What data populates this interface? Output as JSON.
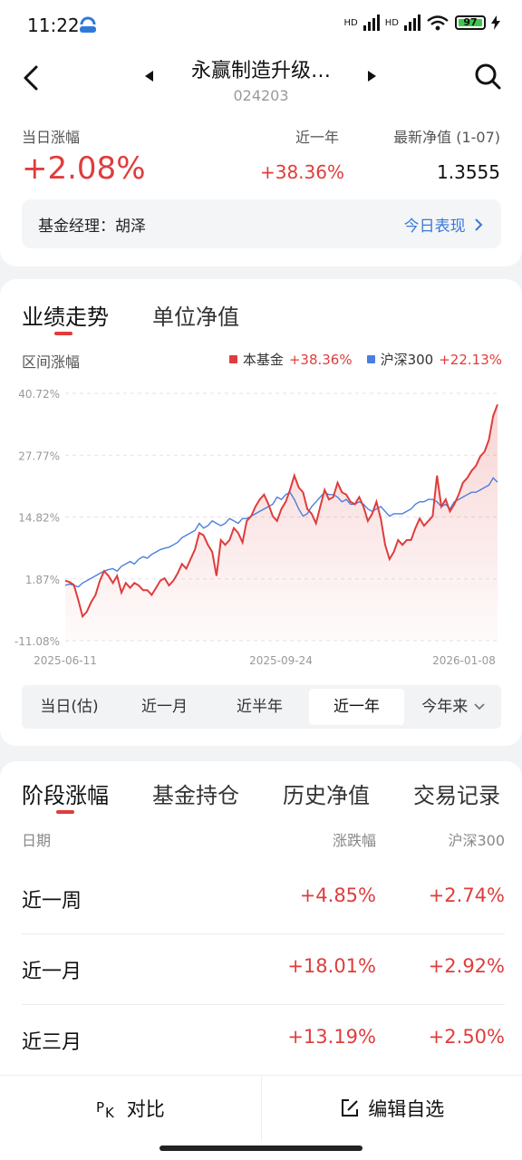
{
  "status_bar": {
    "time": "11:22",
    "battery": "97",
    "network_label": "HD"
  },
  "header": {
    "title": "永赢制造升级…",
    "code": "024203"
  },
  "summary": {
    "daily_change_label": "当日涨幅",
    "daily_change_value": "+2.08%",
    "year_label": "近一年",
    "year_value": "+38.36%",
    "nav_label": "最新净值 (1-07)",
    "nav_value": "1.3555",
    "manager_text": "基金经理：胡泽",
    "today_link": "今日表现"
  },
  "chart_section": {
    "tabs": [
      "业绩走势",
      "单位净值"
    ],
    "range_label": "区间涨幅",
    "legend": [
      {
        "name": "本基金",
        "value": "+38.36%",
        "color": "#e03c3c"
      },
      {
        "name": "沪深300",
        "value": "+22.13%",
        "color": "#4a7fe0"
      }
    ],
    "periods": [
      "当日(估)",
      "近一月",
      "近半年",
      "近一年",
      "今年来"
    ],
    "active_period": "近一年"
  },
  "chart_data": {
    "type": "line",
    "y_ticks": [
      "40.72%",
      "27.77%",
      "14.82%",
      "1.87%",
      "-11.08%"
    ],
    "x_ticks": [
      "2025-06-11",
      "2025-09-24",
      "2026-01-08"
    ],
    "ylim": [
      -11.08,
      40.72
    ],
    "grid": true,
    "legend_position": "top-right",
    "series": [
      {
        "name": "本基金",
        "color": "#e03c3c",
        "values": [
          1.5,
          1.2,
          0.6,
          -2.5,
          -6.0,
          -5.0,
          -3.0,
          -1.5,
          1.5,
          3.5,
          2.5,
          1.0,
          2.5,
          -1.0,
          1.0,
          0.0,
          1.0,
          0.5,
          -0.5,
          -0.5,
          -1.5,
          0.0,
          1.5,
          2.0,
          0.5,
          1.5,
          3.0,
          5.0,
          4.0,
          6.0,
          8.0,
          11.5,
          11.0,
          9.0,
          7.5,
          2.5,
          10.0,
          9.0,
          10.0,
          12.5,
          11.5,
          9.5,
          14.0,
          15.0,
          17.0,
          18.5,
          19.5,
          17.5,
          15.0,
          14.0,
          16.5,
          18.0,
          20.5,
          23.5,
          21.0,
          20.0,
          16.5,
          15.5,
          13.5,
          17.0,
          20.5,
          18.5,
          19.0,
          22.0,
          20.0,
          19.5,
          18.0,
          17.5,
          19.0,
          17.0,
          14.0,
          15.5,
          18.0,
          14.5,
          9.0,
          6.0,
          7.5,
          10.0,
          9.0,
          10.0,
          10.0,
          12.5,
          14.5,
          13.0,
          14.0,
          15.0,
          23.5,
          17.0,
          18.5,
          16.0,
          17.5,
          19.5,
          22.0,
          23.0,
          24.5,
          25.5,
          27.5,
          28.5,
          31.0,
          36.0,
          38.36
        ]
      },
      {
        "name": "沪深300",
        "color": "#4a7fe0",
        "values": [
          0.5,
          0.8,
          0.5,
          0.2,
          1.0,
          1.5,
          2.0,
          2.5,
          3.0,
          3.5,
          3.8,
          4.0,
          3.5,
          4.5,
          5.0,
          5.5,
          5.0,
          6.0,
          6.5,
          6.2,
          7.0,
          7.5,
          8.0,
          8.3,
          8.5,
          9.0,
          9.5,
          10.5,
          11.0,
          11.5,
          12.0,
          13.5,
          12.5,
          13.0,
          14.0,
          13.5,
          13.0,
          13.5,
          14.5,
          14.0,
          13.5,
          14.5,
          14.5,
          15.0,
          15.5,
          16.0,
          16.5,
          17.0,
          17.5,
          19.0,
          18.5,
          19.5,
          20.0,
          18.5,
          16.5,
          15.0,
          15.5,
          17.0,
          18.0,
          19.0,
          20.0,
          19.5,
          19.5,
          19.0,
          18.0,
          18.5,
          17.5,
          17.5,
          18.0,
          17.5,
          16.5,
          16.0,
          16.5,
          17.0,
          16.0,
          15.0,
          15.5,
          15.5,
          15.5,
          16.0,
          16.5,
          17.5,
          18.0,
          18.0,
          18.5,
          18.5,
          18.0,
          17.0,
          17.5,
          16.5,
          18.0,
          18.5,
          19.0,
          19.5,
          20.0,
          20.0,
          20.5,
          21.0,
          21.5,
          23.0,
          22.13
        ]
      }
    ]
  },
  "stage_section": {
    "tabs": [
      "阶段涨幅",
      "基金持仓",
      "历史净值",
      "交易记录"
    ],
    "columns": [
      "日期",
      "涨跌幅",
      "沪深300"
    ],
    "rows": [
      {
        "label": "近一周",
        "change": "+4.85%",
        "hs300": "+2.74%"
      },
      {
        "label": "近一月",
        "change": "+18.01%",
        "hs300": "+2.92%"
      },
      {
        "label": "近三月",
        "change": "+13.19%",
        "hs300": "+2.50%"
      }
    ]
  },
  "bottom_bar": {
    "compare": "对比",
    "edit": "编辑自选"
  }
}
